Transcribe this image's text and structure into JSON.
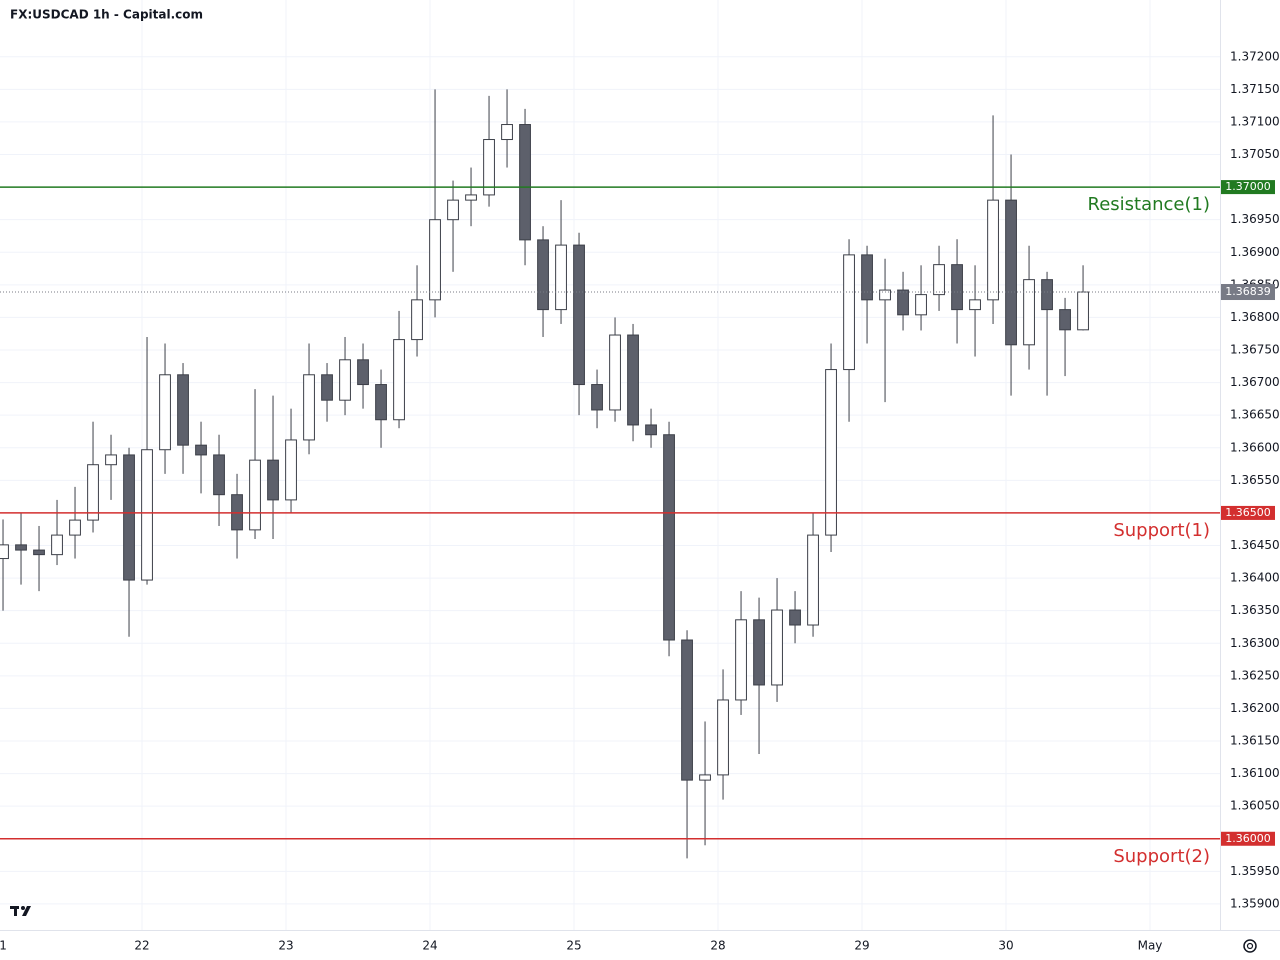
{
  "chart_data": {
    "type": "candlestick",
    "title": "FX:USDCAD 1h - Capital.com",
    "x": [
      -0.965,
      -0.84,
      -0.715,
      -0.59,
      -0.465,
      -0.34,
      -0.215,
      -0.09,
      0.035,
      0.16,
      0.285,
      0.41,
      0.535,
      0.66,
      0.785,
      0.91,
      1.035,
      1.16,
      1.285,
      1.41,
      1.535,
      1.66,
      1.785,
      1.91,
      2.035,
      2.16,
      2.285,
      2.41,
      2.535,
      2.66,
      2.785,
      2.91,
      3.035,
      3.16,
      3.285,
      3.41,
      3.535,
      3.66,
      3.785,
      3.91,
      4.035,
      4.16,
      4.285,
      4.41,
      4.535,
      4.66,
      4.785,
      4.91,
      5.035,
      5.16,
      5.285,
      5.41,
      5.535,
      5.66,
      5.785,
      5.91,
      6.035,
      6.16,
      6.285,
      6.41,
      6.535
    ],
    "open": [
      1.3643,
      1.36451,
      1.36443,
      1.36436,
      1.36466,
      1.36489,
      1.36574,
      1.36589,
      1.36397,
      1.36597,
      1.36712,
      1.36604,
      1.36589,
      1.36528,
      1.36474,
      1.36581,
      1.3652,
      1.36612,
      1.36712,
      1.36673,
      1.36735,
      1.36697,
      1.36643,
      1.36766,
      1.36827,
      1.3695,
      1.3698,
      1.36988,
      1.37073,
      1.37096,
      1.36919,
      1.36812,
      1.36911,
      1.36697,
      1.36658,
      1.36773,
      1.36635,
      1.3662,
      1.36305,
      1.3609,
      1.36098,
      1.36213,
      1.36336,
      1.36236,
      1.36351,
      1.36328,
      1.36466,
      1.3672,
      1.36896,
      1.36827,
      1.36842,
      1.36804,
      1.36835,
      1.36881,
      1.36812,
      1.36827,
      1.3698,
      1.36758,
      1.36858,
      1.36812,
      1.36781
    ],
    "high": [
      1.3649,
      1.365,
      1.3648,
      1.3652,
      1.3654,
      1.3664,
      1.3662,
      1.366,
      1.3677,
      1.3676,
      1.3673,
      1.3664,
      1.3662,
      1.3656,
      1.3669,
      1.3668,
      1.3666,
      1.3676,
      1.3673,
      1.3677,
      1.3676,
      1.3672,
      1.3681,
      1.3688,
      1.3715,
      1.3701,
      1.3703,
      1.3714,
      1.3715,
      1.3712,
      1.3694,
      1.3698,
      1.3693,
      1.3672,
      1.368,
      1.3679,
      1.3666,
      1.3664,
      1.3632,
      1.3618,
      1.3626,
      1.3638,
      1.3637,
      1.364,
      1.3638,
      1.365,
      1.3676,
      1.3692,
      1.3691,
      1.3689,
      1.3687,
      1.3688,
      1.3691,
      1.3692,
      1.3688,
      1.3711,
      1.3705,
      1.3691,
      1.3687,
      1.3683,
      1.3688
    ],
    "low": [
      1.3635,
      1.3639,
      1.3638,
      1.3642,
      1.3643,
      1.3647,
      1.3652,
      1.3631,
      1.3639,
      1.3656,
      1.3656,
      1.3653,
      1.3648,
      1.3643,
      1.3646,
      1.3646,
      1.365,
      1.3659,
      1.3664,
      1.3665,
      1.3666,
      1.366,
      1.3663,
      1.3674,
      1.368,
      1.3687,
      1.3694,
      1.3697,
      1.3703,
      1.3688,
      1.3677,
      1.3679,
      1.3665,
      1.3663,
      1.3664,
      1.3661,
      1.366,
      1.3628,
      1.3597,
      1.3599,
      1.3606,
      1.3619,
      1.3613,
      1.3621,
      1.363,
      1.3631,
      1.3644,
      1.3664,
      1.3676,
      1.3667,
      1.3678,
      1.3678,
      1.3681,
      1.3676,
      1.3674,
      1.3679,
      1.3668,
      1.3672,
      1.3668,
      1.3671,
      1.3678
    ],
    "close": [
      1.36451,
      1.36443,
      1.36436,
      1.36466,
      1.36489,
      1.36574,
      1.36589,
      1.36397,
      1.36597,
      1.36712,
      1.36604,
      1.36589,
      1.36528,
      1.36474,
      1.36581,
      1.3652,
      1.36612,
      1.36712,
      1.36673,
      1.36735,
      1.36697,
      1.36643,
      1.36766,
      1.36827,
      1.3695,
      1.3698,
      1.36988,
      1.37073,
      1.37096,
      1.36919,
      1.36812,
      1.36911,
      1.36697,
      1.36658,
      1.36773,
      1.36635,
      1.3662,
      1.36305,
      1.3609,
      1.36098,
      1.36213,
      1.36336,
      1.36236,
      1.36351,
      1.36328,
      1.36466,
      1.3672,
      1.36896,
      1.36827,
      1.36842,
      1.36804,
      1.36835,
      1.36881,
      1.36812,
      1.36827,
      1.3698,
      1.36758,
      1.36858,
      1.36812,
      1.36781,
      1.36839
    ],
    "up_color": "#ffffff",
    "down_color": "#5d606b",
    "wick_color": "#3c3f48",
    "xlim": [
      -0.986,
      7.486
    ],
    "xticks": [
      {
        "value": -1,
        "label": "1"
      },
      {
        "value": 0,
        "label": "22"
      },
      {
        "value": 1,
        "label": "23"
      },
      {
        "value": 2,
        "label": "24"
      },
      {
        "value": 3,
        "label": "25"
      },
      {
        "value": 4,
        "label": "28"
      },
      {
        "value": 5,
        "label": "29"
      },
      {
        "value": 6,
        "label": "30"
      },
      {
        "value": 7,
        "label": "May"
      }
    ],
    "ylim": [
      1.3586,
      1.37238
    ],
    "yticks": [
      {
        "value": 1.372,
        "label": "1.37200"
      },
      {
        "value": 1.3715,
        "label": "1.37150"
      },
      {
        "value": 1.371,
        "label": "1.37100"
      },
      {
        "value": 1.3705,
        "label": "1.37050"
      },
      {
        "value": 1.3695,
        "label": "1.36950"
      },
      {
        "value": 1.369,
        "label": "1.36900"
      },
      {
        "value": 1.3685,
        "label": "1.36850"
      },
      {
        "value": 1.368,
        "label": "1.36800"
      },
      {
        "value": 1.3675,
        "label": "1.36750"
      },
      {
        "value": 1.367,
        "label": "1.36700"
      },
      {
        "value": 1.3665,
        "label": "1.36650"
      },
      {
        "value": 1.366,
        "label": "1.36600"
      },
      {
        "value": 1.3655,
        "label": "1.36550"
      },
      {
        "value": 1.3645,
        "label": "1.36450"
      },
      {
        "value": 1.364,
        "label": "1.36400"
      },
      {
        "value": 1.3635,
        "label": "1.36350"
      },
      {
        "value": 1.363,
        "label": "1.36300"
      },
      {
        "value": 1.3625,
        "label": "1.36250"
      },
      {
        "value": 1.362,
        "label": "1.36200"
      },
      {
        "value": 1.3615,
        "label": "1.36150"
      },
      {
        "value": 1.361,
        "label": "1.36100"
      },
      {
        "value": 1.3605,
        "label": "1.36050"
      },
      {
        "value": 1.3595,
        "label": "1.35950"
      },
      {
        "value": 1.359,
        "label": "1.35900"
      }
    ],
    "levels": [
      {
        "name": "Resistance(1)",
        "value": 1.37,
        "value_label": "1.37000",
        "color": "#217a21"
      },
      {
        "name": "Support(1)",
        "value": 1.365,
        "value_label": "1.36500",
        "color": "#d32f2f"
      },
      {
        "name": "Support(2)",
        "value": 1.36,
        "value_label": "1.36000",
        "color": "#d32f2f"
      }
    ],
    "last": {
      "value": 1.36839,
      "label": "1.36839",
      "color": "#787b86"
    },
    "grid": true
  }
}
